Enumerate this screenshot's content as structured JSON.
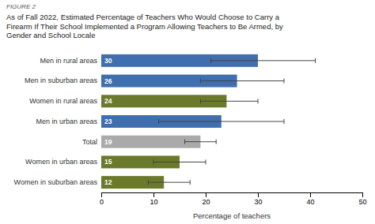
{
  "chart_data": {
    "type": "bar",
    "orientation": "horizontal",
    "annotations": [
      "FIGURE 2"
    ],
    "title": "As of Fall 2022, Estimated Percentage of Teachers Who Would Choose to Carry a\nFirearm If Their School Implemented a Program Allowing Teachers to Be Armed, by\nGender and School Locale",
    "categories": [
      "Men in rural areas",
      "Men in suburban areas",
      "Women in rural areas",
      "Men in urban areas",
      "Total",
      "Women in urban areas",
      "Women in suburban areas"
    ],
    "values": [
      30,
      26,
      24,
      23,
      19,
      15,
      12
    ],
    "ci_lower": [
      21,
      19,
      19,
      11,
      16,
      10,
      9
    ],
    "ci_upper": [
      41,
      35,
      30,
      35,
      22,
      20,
      17
    ],
    "colors": [
      "#3F6FAE",
      "#3F6FAE",
      "#6B7A2A",
      "#3F6FAE",
      "#AAAAAA",
      "#6B7A2A",
      "#6B7A2A"
    ],
    "xlabel": "Percentage of teachers",
    "xlim": [
      0,
      50
    ],
    "xticks": [
      0,
      10,
      20,
      30,
      40,
      50
    ],
    "data_labels": true,
    "grid": false
  }
}
